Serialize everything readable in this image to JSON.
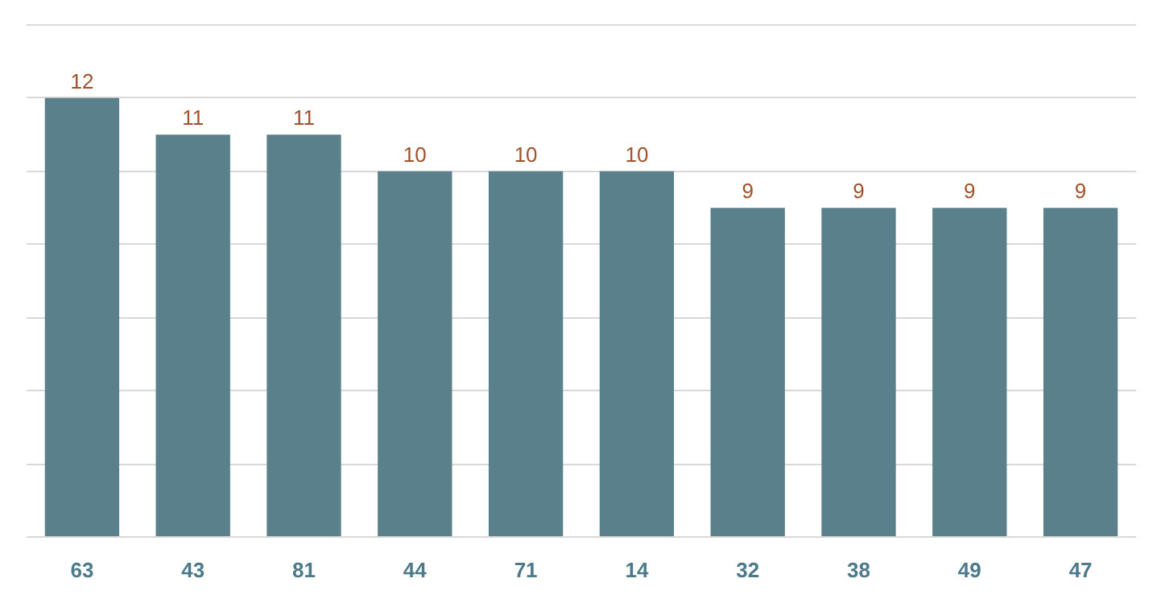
{
  "chart_data": {
    "type": "bar",
    "categories": [
      "63",
      "43",
      "81",
      "44",
      "71",
      "14",
      "32",
      "38",
      "49",
      "47"
    ],
    "values": [
      12,
      11,
      11,
      10,
      10,
      10,
      9,
      9,
      9,
      9
    ],
    "color": "#5a818b",
    "data_labels": true,
    "ylim": [
      0,
      14
    ],
    "yticks": [
      {
        "value": 0,
        "label": null
      },
      {
        "value": 2,
        "label": null
      },
      {
        "value": 4,
        "label": null
      },
      {
        "value": 6,
        "label": null
      },
      {
        "value": 8,
        "label": null
      },
      {
        "value": 10,
        "label": null
      },
      {
        "value": 12,
        "label": null
      },
      {
        "value": 14,
        "label": null
      }
    ],
    "grid": "y",
    "tick_labels": "x"
  }
}
